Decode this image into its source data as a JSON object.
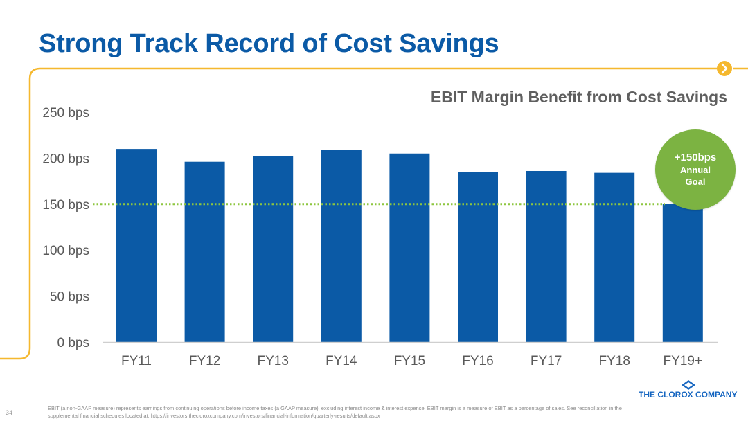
{
  "slide": {
    "title": "Strong Track Record of Cost Savings",
    "page_number": "34",
    "footnote": "EBIT (a non-GAAP measure) represents earnings from continuing operations before income taxes (a GAAP measure), excluding interest income & interest expense.  EBIT margin is a measure of EBIT as a percentage of sales. See reconciliation in the supplemental financial schedules located at: https://investors.thecloroxcompany.com/investors/financial-information/quarterly-results/default.aspx",
    "logo_text": "THE CLOROX COMPANY",
    "accent_color": "#f5b82e",
    "title_color": "#0b5aa6"
  },
  "goal_badge": {
    "line1": "+150bps",
    "line2": "Annual",
    "line3": "Goal",
    "color": "#7cb342"
  },
  "chart_data": {
    "type": "bar",
    "title": "EBIT Margin Benefit from Cost Savings",
    "categories": [
      "FY11",
      "FY12",
      "FY13",
      "FY14",
      "FY15",
      "FY16",
      "FY17",
      "FY18",
      "FY19+"
    ],
    "values": [
      210,
      196,
      202,
      209,
      205,
      185,
      186,
      184,
      150
    ],
    "y_tick_labels": [
      "0 bps",
      "50 bps",
      "100 bps",
      "150 bps",
      "200 bps",
      "250 bps"
    ],
    "y_ticks": [
      0,
      50,
      100,
      150,
      200,
      250
    ],
    "ylim": [
      0,
      250
    ],
    "reference_line": {
      "value": 150,
      "style": "dotted",
      "color": "#8dc63f"
    },
    "bar_color": "#0b5aa6",
    "grid": false,
    "legend": "none"
  }
}
